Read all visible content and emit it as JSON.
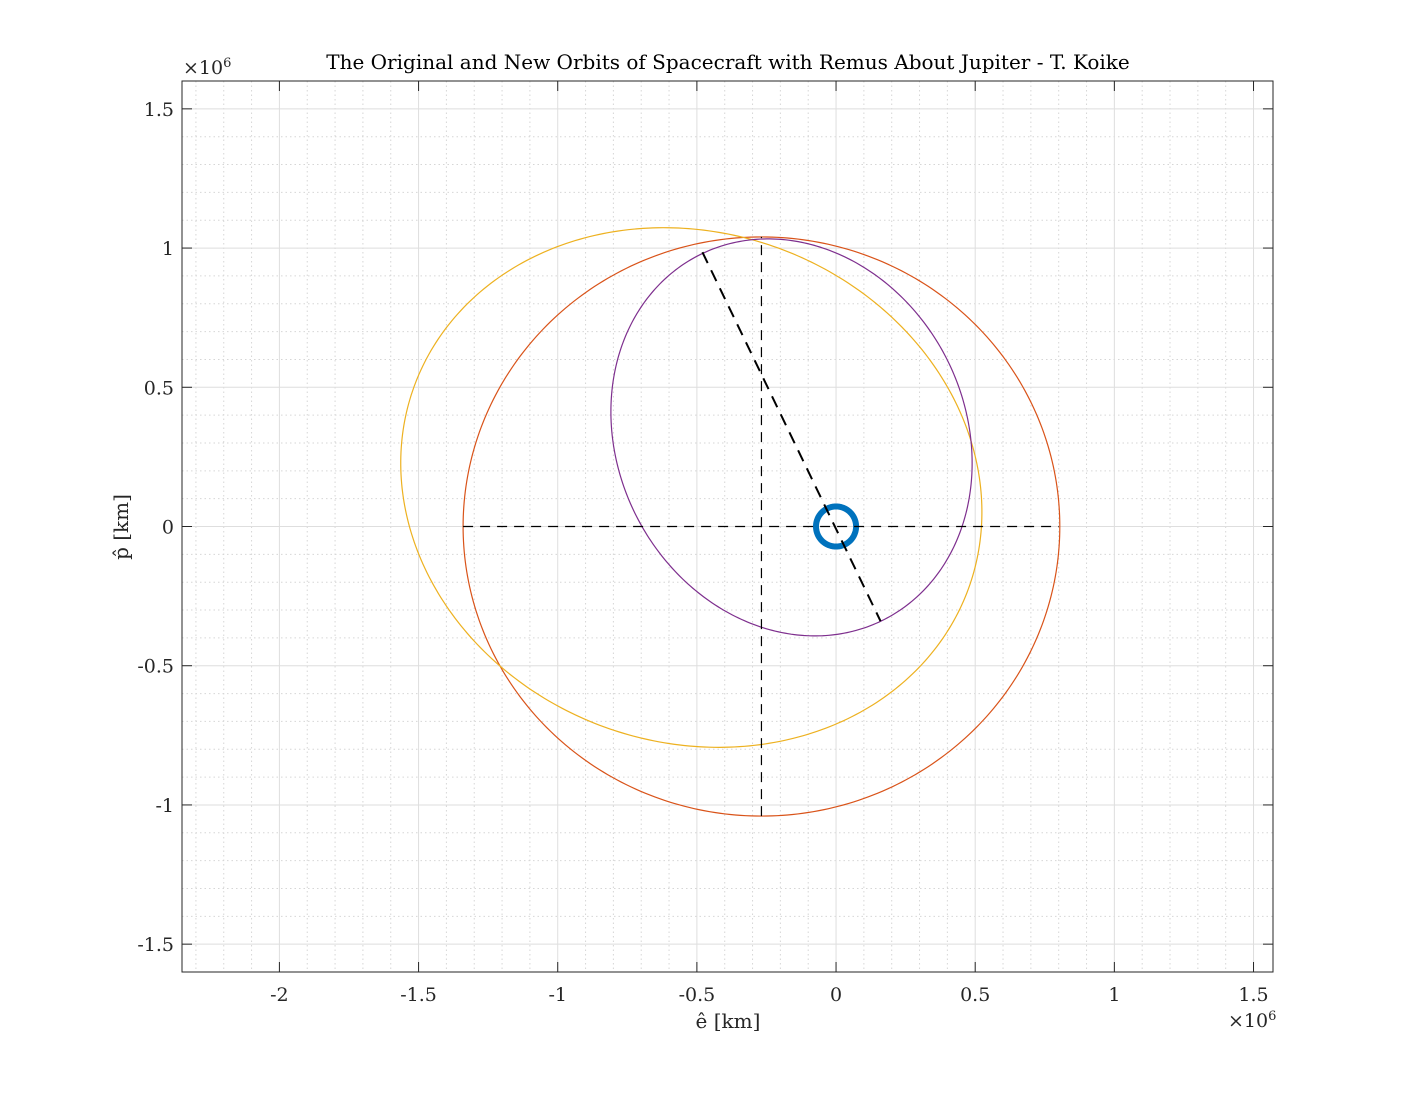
{
  "chart_data": {
    "type": "line",
    "title": "The Original and New Orbits of Spacecraft with Remus About Jupiter - T. Koike",
    "xlabel": "ê [km]",
    "ylabel": "p̂ [km]",
    "x_exponent": "×10",
    "x_exponent_power": "6",
    "y_exponent": "×10",
    "y_exponent_power": "6",
    "xlim": [
      -2.35,
      1.57
    ],
    "ylim": [
      -1.6,
      1.6
    ],
    "xticks": [
      -2,
      -1.5,
      -1,
      -0.5,
      0,
      0.5,
      1,
      1.5
    ],
    "xtick_labels": [
      "-2",
      "-1.5",
      "-1",
      "-0.5",
      "0",
      "0.5",
      "1",
      "1.5"
    ],
    "yticks": [
      -1.5,
      -1,
      -0.5,
      0,
      0.5,
      1,
      1.5
    ],
    "ytick_labels": [
      "-1.5",
      "-1",
      "-0.5",
      "0",
      "0.5",
      "1",
      "1.5"
    ],
    "grid": true,
    "minor_grid": true,
    "scale_note": "values in units of 10^6 km",
    "series": [
      {
        "kind": "ellipse",
        "color": "#0072BD",
        "center": [
          0,
          0
        ],
        "semi_axes": [
          0.072,
          0.072
        ],
        "rotation_deg": 0,
        "line_width": 6
      },
      {
        "kind": "ellipse",
        "color": "#D95319",
        "center": [
          -0.268,
          0
        ],
        "semi_axes": [
          1.072,
          1.04
        ],
        "rotation_deg": 0,
        "line_width": 1.2
      },
      {
        "kind": "ellipse",
        "color": "#EDB120",
        "center": [
          -0.52,
          0.14
        ],
        "semi_axes": [
          1.06,
          0.915
        ],
        "rotation_deg": -20,
        "line_width": 1.2
      },
      {
        "kind": "ellipse",
        "color": "#7E2F8E",
        "center": [
          -0.16,
          0.32
        ],
        "semi_axes": [
          0.734,
          0.625
        ],
        "rotation_deg": 117,
        "line_width": 1.2
      },
      {
        "kind": "line",
        "style": "dashed",
        "color": "#000000",
        "x": [
          -1.34,
          0.8
        ],
        "y": [
          0,
          0
        ],
        "line_width": 1.2
      },
      {
        "kind": "line",
        "style": "dashed",
        "color": "#000000",
        "x": [
          -0.268,
          -0.268
        ],
        "y": [
          -1.04,
          1.04
        ],
        "line_width": 1.2
      },
      {
        "kind": "line",
        "style": "dashed",
        "color": "#000000",
        "x": [
          -0.48,
          0.16
        ],
        "y": [
          0.985,
          -0.34
        ],
        "line_width": 2
      }
    ]
  }
}
